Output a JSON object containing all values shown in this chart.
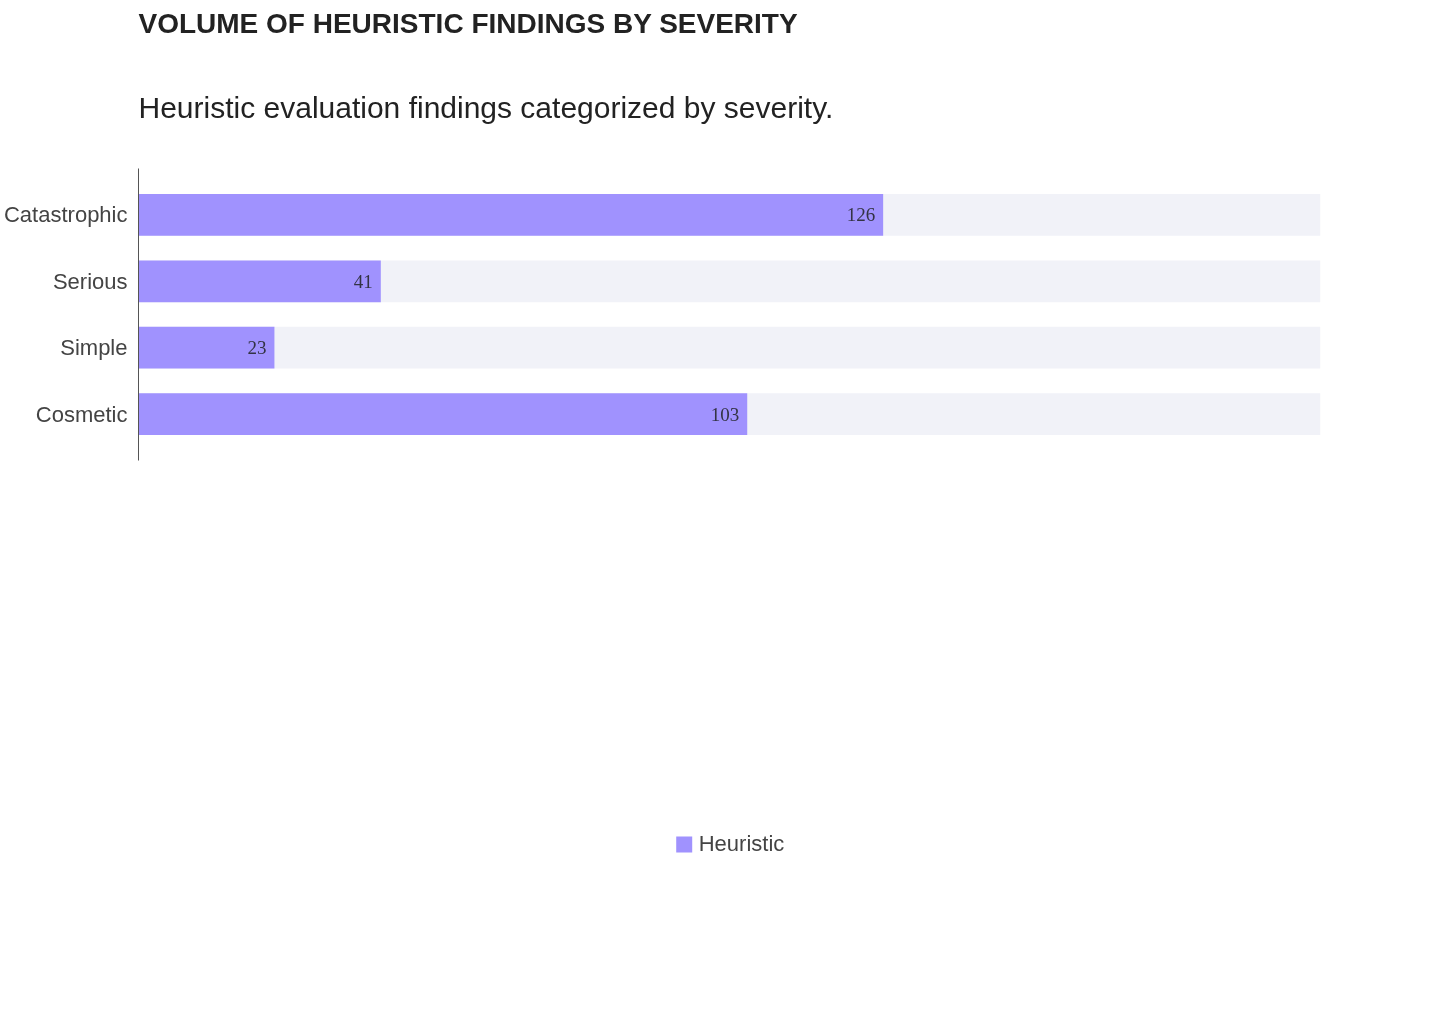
{
  "chart_data": {
    "type": "bar",
    "orientation": "horizontal",
    "title": "VOLUME OF HEURISTIC FINDINGS BY SEVERITY",
    "subtitle": "Heuristic evaluation findings categorized by severity.",
    "categories": [
      "Catastrophic",
      "Serious",
      "Simple",
      "Cosmetic"
    ],
    "series": [
      {
        "name": "Heuristic",
        "color": "#a092fe",
        "values": [
          126,
          41,
          23,
          103
        ]
      }
    ],
    "xlim": [
      0,
      200
    ],
    "tick_labels": "y",
    "data_labels": true,
    "grid": false,
    "legend": "bottom"
  }
}
